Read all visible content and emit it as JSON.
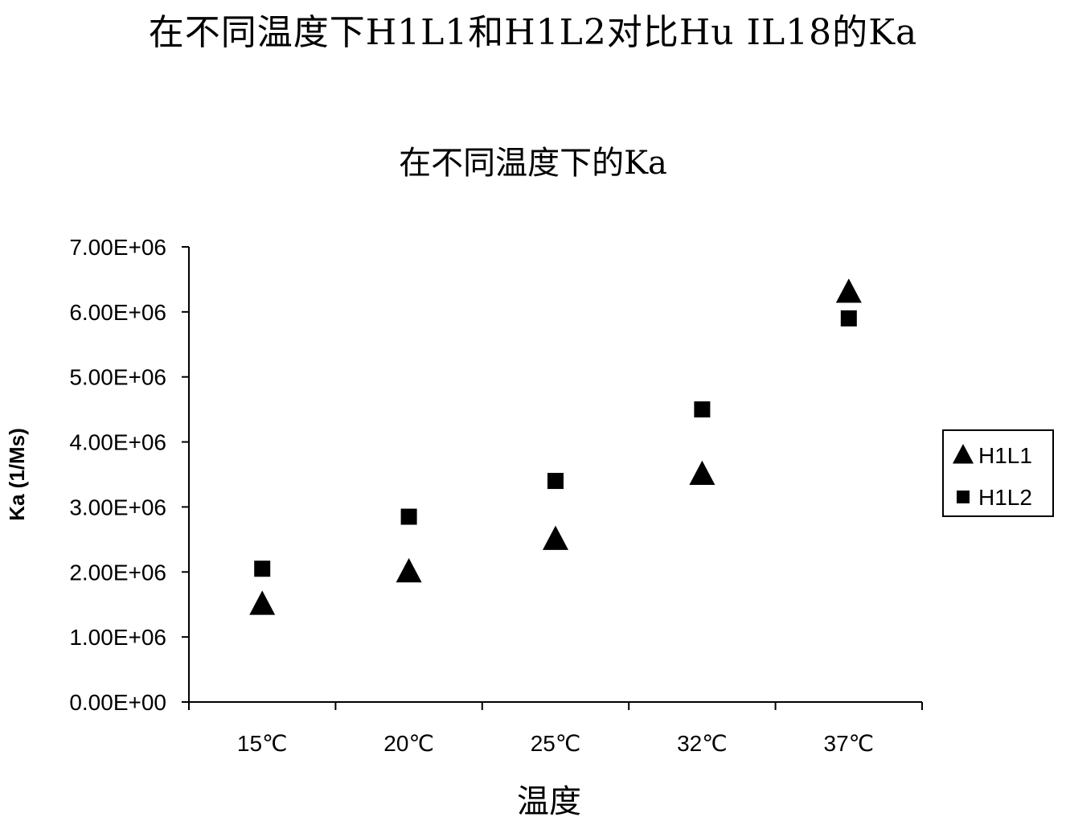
{
  "header": {
    "main_title": "在不同温度下H1L1和H1L2对比Hu IL18的Ka"
  },
  "chart_data": {
    "type": "scatter",
    "title": "在不同温度下的Ka",
    "xlabel": "温度",
    "ylabel": "Ka (1/Ms)",
    "categories": [
      "15℃",
      "20℃",
      "25℃",
      "32℃",
      "37℃"
    ],
    "y_ticks": [
      "0.00E+00",
      "1.00E+06",
      "2.00E+06",
      "3.00E+06",
      "4.00E+06",
      "5.00E+06",
      "6.00E+06",
      "7.00E+06"
    ],
    "ylim": [
      0,
      7000000
    ],
    "grid": false,
    "legend_position": "right",
    "series": [
      {
        "name": "H1L1",
        "marker": "triangle",
        "color": "#000000",
        "values": [
          1500000,
          2000000,
          2500000,
          3500000,
          6300000
        ]
      },
      {
        "name": "H1L2",
        "marker": "square",
        "color": "#000000",
        "values": [
          2050000,
          2850000,
          3400000,
          4500000,
          5900000
        ]
      }
    ]
  }
}
